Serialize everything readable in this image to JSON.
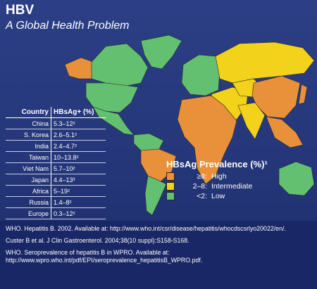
{
  "header": {
    "title": "HBV",
    "subtitle": "A Global Health Problem"
  },
  "table": {
    "headers": [
      "Country",
      "HBsAg+ (%)"
    ],
    "rows": [
      [
        "China",
        "5.3–12²"
      ],
      [
        "S. Korea",
        "2.6–5.1²"
      ],
      [
        "India",
        "2.4–4.7²"
      ],
      [
        "Taiwan",
        "10–13.8²"
      ],
      [
        "Viet Nam",
        "5.7–10²"
      ],
      [
        "Japan",
        "4.4–13³"
      ],
      [
        "Africa",
        "5–19²"
      ],
      [
        "Russia",
        "1.4–8²"
      ],
      [
        "Europe",
        "0.3–12²"
      ]
    ]
  },
  "legend": {
    "title": "HBsAg Prevalence (%)¹",
    "items": [
      {
        "range": "≥8:",
        "label": "High",
        "color": "#e8913a"
      },
      {
        "range": "2–8:",
        "label": "Intermediate",
        "color": "#f2d21a"
      },
      {
        "range": "<2:",
        "label": "Low",
        "color": "#62c070"
      }
    ]
  },
  "references": [
    "WHO. Hepatitis B. 2002. Available at: http://www.who.int/csr/disease/hepatitis/whocdscsrlyo20022/en/.",
    "Custer B et al. J Clin Gastroenterol. 2004;38(10 suppl):S158-S168.",
    "WHO. Seroprevalence of hepatitis B in WPRO. Available at: http://www.wpro.who.int/pdf/EPI/seroprevalence_hepatitisB_WPRO.pdf."
  ]
}
